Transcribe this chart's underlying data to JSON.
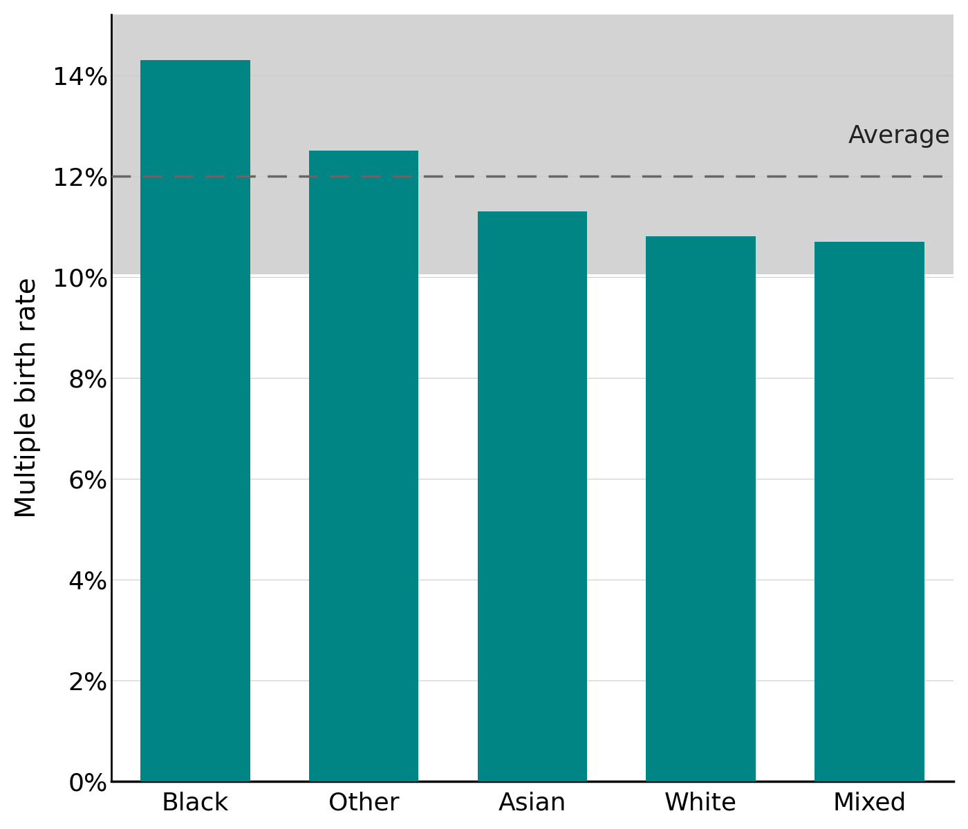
{
  "categories": [
    "Black",
    "Other",
    "Asian",
    "White",
    "Mixed"
  ],
  "values": [
    14.3,
    12.5,
    11.3,
    10.8,
    10.7
  ],
  "bar_color": "#008585",
  "average": 12.0,
  "ci_lower": 10.05,
  "ci_upper": 13.85,
  "ci_color": "#d3d3d3",
  "avg_line_color": "#666666",
  "ylabel": "Multiple birth rate",
  "ylim": [
    0,
    15.2
  ],
  "yticks": [
    0,
    2,
    4,
    6,
    8,
    10,
    12,
    14
  ],
  "avg_label": "Average",
  "avg_label_fontsize": 26,
  "tick_fontsize": 26,
  "label_fontsize": 28,
  "grid_color": "#cccccc",
  "background_color": "#ffffff",
  "bar_width": 0.65
}
